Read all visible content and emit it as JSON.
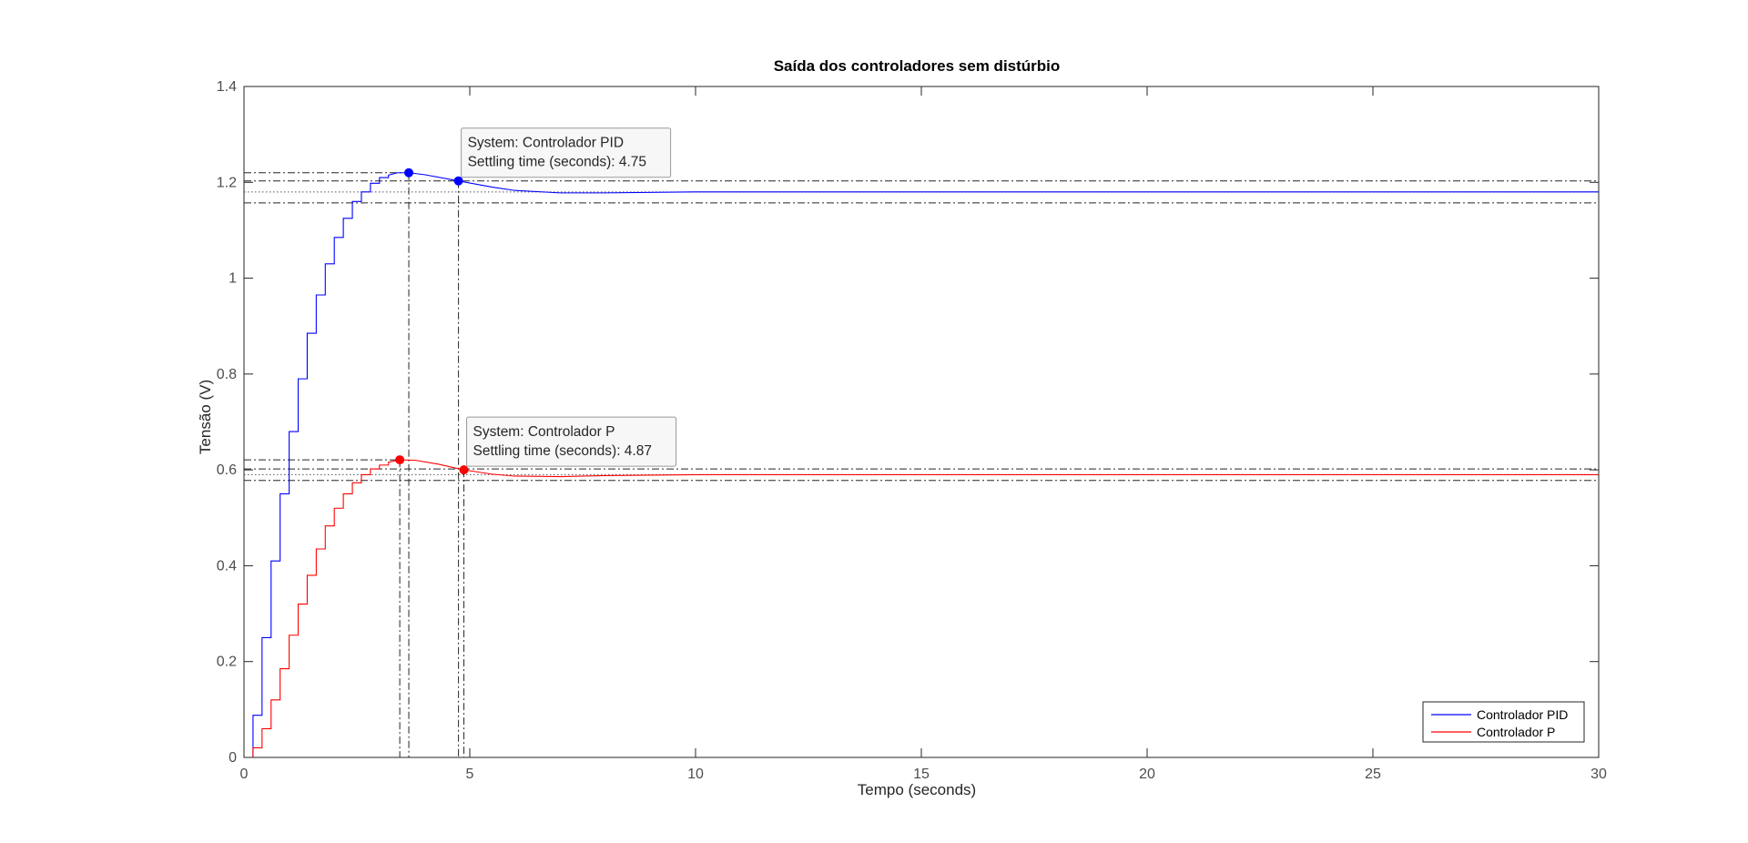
{
  "chart_data": {
    "type": "line",
    "title": "Saída dos controladores sem distúrbio",
    "xlabel": "Tempo (seconds)",
    "ylabel": "Tensão (V)",
    "xlim": [
      0,
      30
    ],
    "ylim": [
      0,
      1.4
    ],
    "xticks": [
      0,
      5,
      10,
      15,
      20,
      25,
      30
    ],
    "yticks": [
      0,
      0.2,
      0.4,
      0.6,
      0.8,
      1,
      1.2,
      1.4
    ],
    "xtick_labels": [
      "0",
      "5",
      "10",
      "15",
      "20",
      "25",
      "30"
    ],
    "ytick_labels": [
      "0",
      "0.2",
      "0.4",
      "0.6",
      "0.8",
      "1",
      "1.2",
      "1.4"
    ],
    "grid": false,
    "legend_position": "bottom-right",
    "series": [
      {
        "name": "Controlador PID",
        "color": "#0000ff",
        "steady_state": 1.18,
        "x": [
          0,
          0.2,
          0.4,
          0.6,
          0.8,
          1.0,
          1.2,
          1.4,
          1.6,
          1.8,
          2.0,
          2.2,
          2.4,
          2.6,
          2.8,
          3.0,
          3.2,
          3.4,
          3.65,
          4.0,
          4.75,
          5.5,
          6.0,
          7.0,
          8.0,
          10.0,
          30.0
        ],
        "y": [
          0,
          0.088,
          0.25,
          0.41,
          0.55,
          0.68,
          0.79,
          0.885,
          0.965,
          1.03,
          1.085,
          1.125,
          1.16,
          1.18,
          1.198,
          1.21,
          1.215,
          1.22,
          1.22,
          1.216,
          1.203,
          1.19,
          1.183,
          1.178,
          1.178,
          1.18,
          1.18
        ],
        "marker": {
          "x": 3.65,
          "y": 1.22
        },
        "settling_time": 4.75,
        "settling_y": 1.203,
        "settling_band": [
          1.157,
          1.203
        ],
        "peak_line": 1.22,
        "datatip": [
          "System: Controlador PID",
          "Settling time (seconds): 4.75"
        ]
      },
      {
        "name": "Controlador P",
        "color": "#ff0000",
        "steady_state": 0.59,
        "x": [
          0,
          0.2,
          0.4,
          0.6,
          0.8,
          1.0,
          1.2,
          1.4,
          1.6,
          1.8,
          2.0,
          2.2,
          2.4,
          2.6,
          2.8,
          3.0,
          3.2,
          3.45,
          3.8,
          4.3,
          4.87,
          5.5,
          6.0,
          7.0,
          8.0,
          10.0,
          30.0
        ],
        "y": [
          0,
          0.02,
          0.06,
          0.12,
          0.185,
          0.255,
          0.32,
          0.38,
          0.435,
          0.483,
          0.52,
          0.55,
          0.573,
          0.59,
          0.602,
          0.61,
          0.616,
          0.621,
          0.62,
          0.612,
          0.6,
          0.591,
          0.587,
          0.586,
          0.588,
          0.59,
          0.59
        ],
        "marker": {
          "x": 3.45,
          "y": 0.621
        },
        "settling_time": 4.87,
        "settling_y": 0.6,
        "settling_band": [
          0.578,
          0.602
        ],
        "peak_line": 0.621,
        "datatip": [
          "System: Controlador P",
          "Settling time (seconds): 4.87"
        ]
      }
    ]
  }
}
